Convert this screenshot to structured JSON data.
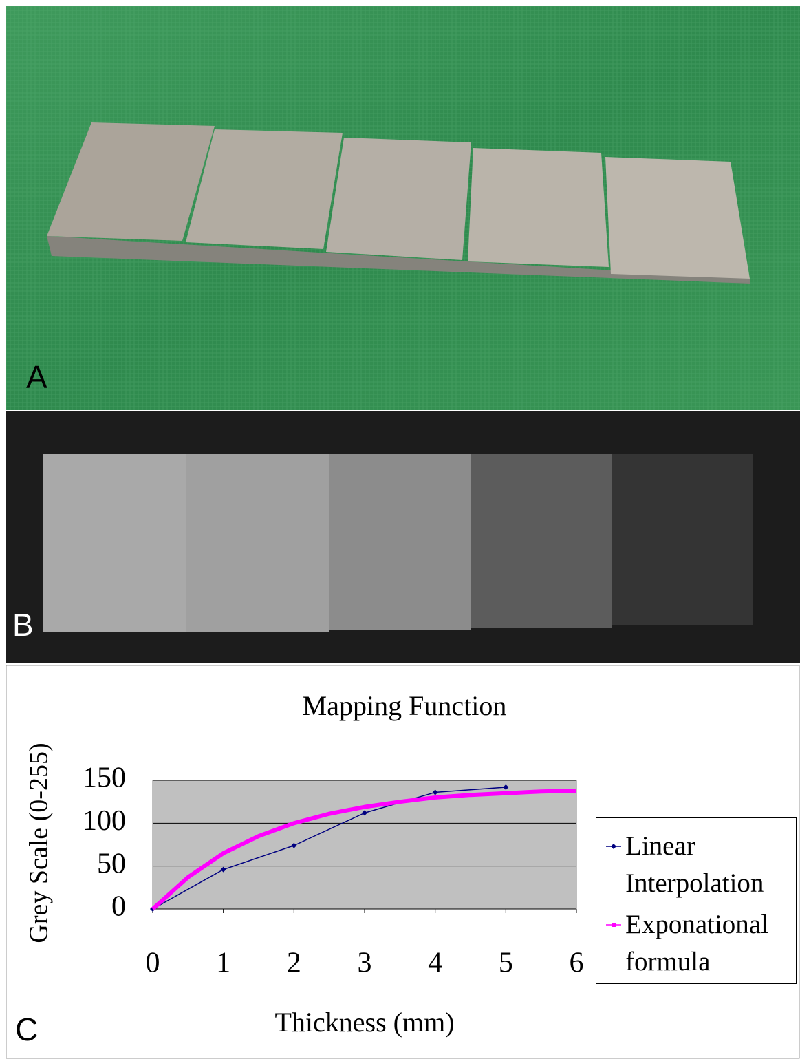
{
  "panels": {
    "a": "A",
    "b": "B",
    "c": "C"
  },
  "chart_data": {
    "type": "line",
    "title": "Mapping Function",
    "x_label": "Thickness (mm)",
    "y_label": "Grey Scale (0-255)",
    "xlim": [
      0,
      6
    ],
    "ylim": [
      0,
      150
    ],
    "xticks": [
      0,
      1,
      2,
      3,
      4,
      5,
      6
    ],
    "yticks": [
      0,
      50,
      100,
      150
    ],
    "grid": true,
    "legend": "right",
    "series": [
      {
        "name": "Linear Interpolation",
        "color": "#000080",
        "x": [
          0,
          1,
          2,
          3,
          4,
          5
        ],
        "values": [
          0,
          46,
          74,
          112,
          136,
          142
        ]
      },
      {
        "name": "Exponational formula",
        "color": "#ff00ff",
        "x": [
          0,
          0.5,
          1,
          1.5,
          2,
          2.5,
          3,
          3.5,
          4,
          4.5,
          5,
          5.5,
          6
        ],
        "values": [
          0,
          37,
          65,
          85,
          100,
          111,
          119,
          125,
          130,
          133,
          135,
          137,
          138
        ]
      }
    ]
  }
}
